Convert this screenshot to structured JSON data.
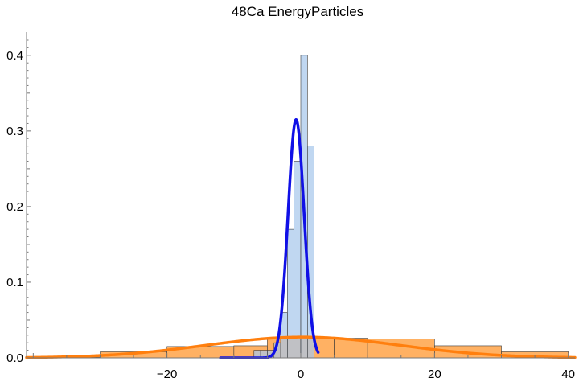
{
  "chart_data": {
    "type": "histogram",
    "title": "48Ca EnergyParticles",
    "xlim": [
      -41,
      41
    ],
    "ylim": [
      0,
      0.42
    ],
    "x_ticks": [
      -20,
      0,
      20,
      40
    ],
    "y_ticks": [
      0.0,
      0.1,
      0.2,
      0.3,
      0.4
    ],
    "x_tick_labels": [
      "−20",
      "0",
      "20",
      "40"
    ],
    "y_tick_labels": [
      "0.0",
      "0.1",
      "0.2",
      "0.3",
      "0.4"
    ],
    "series": [
      {
        "fill": "#ffa64d",
        "curve_color": "#ff7f0e",
        "bin_edges": [
          -40,
          -30,
          -20,
          -10,
          -5,
          0,
          5,
          10,
          20,
          30,
          40
        ],
        "values": [
          0.001,
          0.008,
          0.015,
          0.016,
          0.025,
          0.027,
          0.026,
          0.025,
          0.016,
          0.008
        ],
        "fit": {
          "shape": "gaussian",
          "mean": 0.3,
          "sigma": 14.5,
          "amplitude": 0.0275,
          "x_range": [
            -41,
            41
          ]
        }
      },
      {
        "fill": "#a7c7eb",
        "curve_color": "#1010e6",
        "bin_edges": [
          -7,
          -6,
          -5,
          -4,
          -3,
          -2,
          -1,
          0,
          1,
          2
        ],
        "values": [
          0.01,
          0.01,
          0.01,
          0.02,
          0.06,
          0.17,
          0.26,
          0.4,
          0.28
        ],
        "fit": {
          "shape": "gaussian",
          "mean": -0.7,
          "sigma": 1.2,
          "amplitude": 0.315,
          "x_range": [
            -12,
            2.6
          ]
        }
      }
    ]
  }
}
